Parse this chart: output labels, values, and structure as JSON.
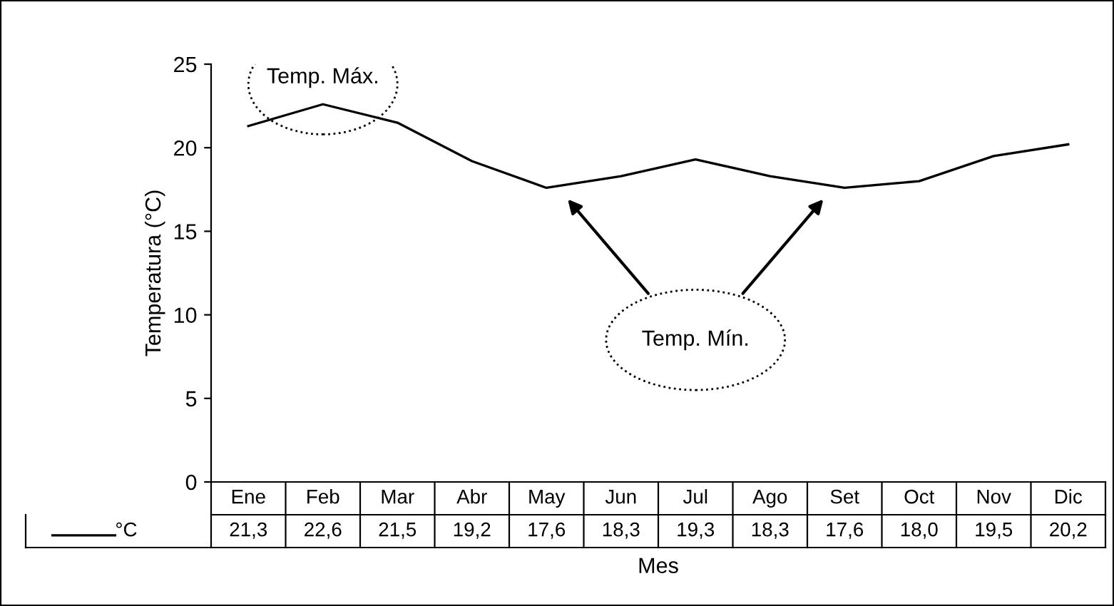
{
  "chart_data": {
    "type": "line",
    "xlabel": "Mes",
    "ylabel": "Temperatura (°C)",
    "categories": [
      "Ene",
      "Feb",
      "Mar",
      "Abr",
      "May",
      "Jun",
      "Jul",
      "Ago",
      "Set",
      "Oct",
      "Nov",
      "Dic"
    ],
    "series": [
      {
        "name": "°C",
        "color": "#000000",
        "values": [
          21.3,
          22.6,
          21.5,
          19.2,
          17.6,
          18.3,
          19.3,
          18.3,
          17.6,
          18.0,
          19.5,
          20.2
        ],
        "value_labels": [
          "21,3",
          "22,6",
          "21,5",
          "19,2",
          "17,6",
          "18,3",
          "19,3",
          "18,3",
          "17,6",
          "18,0",
          "19,5",
          "20,2"
        ]
      }
    ],
    "ylim": [
      0,
      25
    ],
    "yticks": [
      0,
      5,
      10,
      15,
      20,
      25
    ],
    "grid": false,
    "annotations": [
      "Temp. Máx.",
      "Temp. Mín."
    ]
  }
}
